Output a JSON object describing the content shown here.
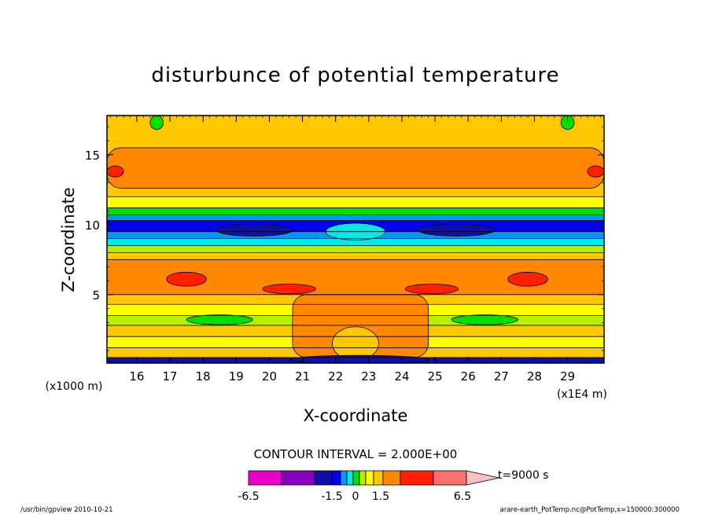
{
  "chart_data": {
    "type": "heatmap",
    "title": "disturbunce of potential temperature",
    "xlabel": "X-coordinate",
    "ylabel": "Z-coordinate",
    "x_unit_label": "(x1E4 m)",
    "y_unit_label": "(x1000 m)",
    "xlim": [
      15.1,
      30.1
    ],
    "ylim": [
      0.1,
      17.8
    ],
    "x_ticks": [
      16,
      17,
      18,
      19,
      20,
      21,
      22,
      23,
      24,
      25,
      26,
      27,
      28,
      29
    ],
    "y_ticks": [
      5,
      10,
      15
    ],
    "contour_interval_text": "CONTOUR INTERVAL = 2.000E+00",
    "time_label": "t=9000 s",
    "colorbar": {
      "colors": [
        "#e800c8",
        "#8800c0",
        "#1010a8",
        "#0000f0",
        "#0098f8",
        "#00e8e8",
        "#00e000",
        "#b8f000",
        "#ffff00",
        "#ffc800",
        "#ff8800",
        "#ff2000",
        "#ff7070",
        "#ffc0c0"
      ],
      "tick_labels": [
        "-6.5",
        "-1.5",
        "0",
        "1.5",
        "6.5"
      ]
    },
    "bands": [
      {
        "z": [
          0.1,
          0.5
        ],
        "value": -1.5,
        "color": "#1010a8"
      },
      {
        "z": [
          0.5,
          1.2
        ],
        "value": 1.2,
        "color": "#ffc800"
      },
      {
        "z": [
          1.2,
          2.0
        ],
        "value": 0.6,
        "color": "#ffff00"
      },
      {
        "z": [
          2.0,
          2.8
        ],
        "value": 1.0,
        "color": "#ffc800"
      },
      {
        "z": [
          2.8,
          3.5
        ],
        "value": 0.4,
        "color": "#b8f000"
      },
      {
        "z": [
          3.5,
          4.3
        ],
        "value": 0.8,
        "color": "#ffff00"
      },
      {
        "z": [
          4.3,
          5.0
        ],
        "value": 1.2,
        "color": "#ffc800"
      },
      {
        "z": [
          5.0,
          7.5
        ],
        "value": 2.5,
        "color": "#ff8800"
      },
      {
        "z": [
          7.5,
          8.0
        ],
        "value": 1.2,
        "color": "#ffc800"
      },
      {
        "z": [
          8.0,
          8.5
        ],
        "value": 0.4,
        "color": "#b8f000"
      },
      {
        "z": [
          8.5,
          9.0
        ],
        "value": -0.5,
        "color": "#00e8e8"
      },
      {
        "z": [
          9.0,
          9.5
        ],
        "value": -0.9,
        "color": "#0098f8"
      },
      {
        "z": [
          9.5,
          10.3
        ],
        "value": -1.5,
        "color": "#0000f0"
      },
      {
        "z": [
          10.3,
          10.7
        ],
        "value": -0.7,
        "color": "#0098f8"
      },
      {
        "z": [
          10.7,
          11.2
        ],
        "value": 0.2,
        "color": "#00e000"
      },
      {
        "z": [
          11.2,
          12.0
        ],
        "value": 0.8,
        "color": "#ffff00"
      },
      {
        "z": [
          12.0,
          17.8
        ],
        "value": 1.2,
        "color": "#ffc800"
      }
    ],
    "features": [
      {
        "shape": "rect",
        "x": [
          15.1,
          30.1
        ],
        "z": [
          12.6,
          15.5
        ],
        "color": "#ff8800"
      },
      {
        "shape": "ellipse",
        "x": 15.35,
        "z": 13.8,
        "rx": 0.25,
        "rz": 0.4,
        "color": "#ff2000"
      },
      {
        "shape": "ellipse",
        "x": 29.85,
        "z": 13.8,
        "rx": 0.25,
        "rz": 0.4,
        "color": "#ff2000"
      },
      {
        "shape": "ellipse",
        "x": 19.55,
        "z": 9.6,
        "rx": 1.15,
        "rz": 0.42,
        "color": "#1010a8"
      },
      {
        "shape": "ellipse",
        "x": 25.65,
        "z": 9.6,
        "rx": 1.15,
        "rz": 0.42,
        "color": "#1010a8"
      },
      {
        "shape": "ellipse",
        "x": 22.6,
        "z": 9.5,
        "rx": 0.9,
        "rz": 0.6,
        "color": "#00e8e8"
      },
      {
        "shape": "ellipse",
        "x": 17.5,
        "z": 6.1,
        "rx": 0.6,
        "rz": 0.5,
        "color": "#ff2000"
      },
      {
        "shape": "ellipse",
        "x": 27.8,
        "z": 6.1,
        "rx": 0.6,
        "rz": 0.5,
        "color": "#ff2000"
      },
      {
        "shape": "ellipse",
        "x": 20.6,
        "z": 5.4,
        "rx": 0.8,
        "rz": 0.35,
        "color": "#ff2000"
      },
      {
        "shape": "ellipse",
        "x": 24.9,
        "z": 5.4,
        "rx": 0.8,
        "rz": 0.35,
        "color": "#ff2000"
      },
      {
        "shape": "ellipse",
        "x": 18.5,
        "z": 3.2,
        "rx": 1.0,
        "rz": 0.35,
        "color": "#00e000"
      },
      {
        "shape": "ellipse",
        "x": 26.5,
        "z": 3.2,
        "rx": 1.0,
        "rz": 0.35,
        "color": "#00e000"
      },
      {
        "shape": "rect",
        "x": [
          20.7,
          24.8
        ],
        "z": [
          0.5,
          5.0
        ],
        "color": "#ff8800"
      },
      {
        "shape": "ellipse",
        "x": 22.6,
        "z": 1.5,
        "rx": 0.7,
        "rz": 1.2,
        "color": "#ffc800"
      },
      {
        "shape": "ellipse",
        "x": 22.7,
        "z": 0.35,
        "rx": 2.1,
        "rz": 0.3,
        "color": "#1010a8"
      },
      {
        "shape": "ellipse",
        "x": 16.6,
        "z": 17.3,
        "rx": 0.2,
        "rz": 0.5,
        "color": "#00e000"
      },
      {
        "shape": "ellipse",
        "x": 29.0,
        "z": 17.3,
        "rx": 0.2,
        "rz": 0.5,
        "color": "#00e000"
      }
    ]
  },
  "footer": {
    "left": "/usr/bin/gpview  2010-10-21",
    "right": "arare-earth_PotTemp.nc@PotTemp,x=150000:300000"
  }
}
